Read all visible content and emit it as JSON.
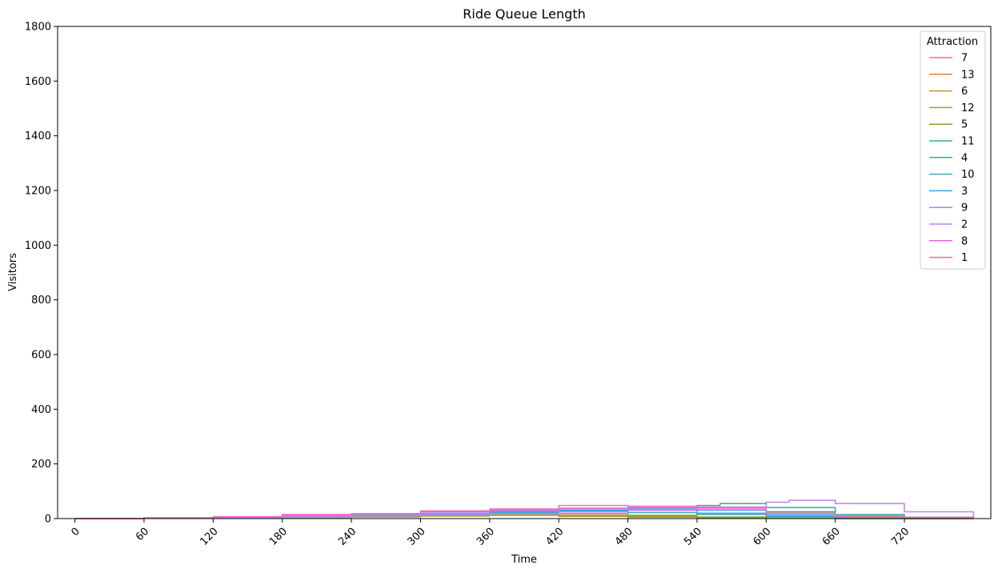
{
  "chart_data": {
    "type": "line",
    "title": "Ride Queue Length",
    "xlabel": "Time",
    "ylabel": "Visitors",
    "xlim": [
      -15,
      795
    ],
    "ylim": [
      0,
      1800
    ],
    "xticks": [
      0,
      60,
      120,
      180,
      240,
      300,
      360,
      420,
      480,
      540,
      600,
      660,
      720
    ],
    "yticks": [
      0,
      200,
      400,
      600,
      800,
      1000,
      1200,
      1400,
      1600,
      1800
    ],
    "grid": false,
    "legend": {
      "title": "Attraction",
      "placement": "top-right"
    },
    "series": [
      {
        "name": "7",
        "color": "#f77189",
        "x": [
          0,
          60,
          120,
          180,
          240,
          300,
          360,
          420,
          480,
          540,
          600,
          660,
          720,
          780
        ],
        "y": [
          0,
          2,
          4,
          7,
          10,
          12,
          14,
          12,
          8,
          5,
          3,
          1,
          0,
          0
        ]
      },
      {
        "name": "13",
        "color": "#e8822a",
        "x": [
          0,
          60,
          120,
          180,
          240,
          300,
          360,
          420,
          480,
          540,
          600,
          660,
          720,
          780
        ],
        "y": [
          0,
          1,
          3,
          5,
          8,
          10,
          12,
          10,
          7,
          4,
          2,
          1,
          0,
          0
        ]
      },
      {
        "name": "6",
        "color": "#c39532",
        "x": [
          0,
          60,
          120,
          180,
          240,
          300,
          360,
          420,
          480,
          540,
          600,
          660,
          720,
          780
        ],
        "y": [
          0,
          1,
          2,
          4,
          6,
          9,
          12,
          8,
          5,
          2,
          1,
          0,
          0,
          0
        ]
      },
      {
        "name": "12",
        "color": "#a5a032",
        "x": [
          0,
          60,
          120,
          180,
          240,
          300,
          360,
          420,
          480,
          540,
          600,
          660,
          720,
          780
        ],
        "y": [
          0,
          2,
          4,
          6,
          9,
          12,
          16,
          10,
          6,
          3,
          1,
          0,
          0,
          0
        ]
      },
      {
        "name": "5",
        "color": "#77ab31",
        "x": [
          0,
          60,
          120,
          180,
          240,
          300,
          360,
          420,
          480,
          540,
          600,
          660,
          720,
          780
        ],
        "y": [
          0,
          1,
          3,
          5,
          8,
          14,
          20,
          18,
          12,
          6,
          3,
          1,
          0,
          0
        ]
      },
      {
        "name": "11",
        "color": "#33b07a",
        "x": [
          0,
          60,
          120,
          180,
          240,
          300,
          360,
          420,
          480,
          540,
          600,
          660,
          720,
          780
        ],
        "y": [
          0,
          2,
          4,
          8,
          12,
          18,
          24,
          30,
          35,
          40,
          25,
          10,
          4,
          2
        ]
      },
      {
        "name": "4",
        "color": "#35ad9c",
        "x": [
          0,
          60,
          120,
          180,
          240,
          300,
          360,
          420,
          480,
          540,
          560,
          600,
          660,
          720,
          780
        ],
        "y": [
          0,
          2,
          4,
          8,
          12,
          18,
          24,
          30,
          40,
          48,
          55,
          40,
          15,
          5,
          2
        ]
      },
      {
        "name": "10",
        "color": "#38a9c5",
        "x": [
          0,
          60,
          120,
          180,
          240,
          300,
          360,
          420,
          480,
          540,
          600,
          660,
          720,
          780
        ],
        "y": [
          0,
          1,
          3,
          6,
          10,
          14,
          20,
          25,
          22,
          15,
          8,
          4,
          2,
          1
        ]
      },
      {
        "name": "3",
        "color": "#3ba3ec",
        "x": [
          0,
          60,
          120,
          180,
          240,
          300,
          360,
          420,
          480,
          540,
          600,
          660,
          720,
          780
        ],
        "y": [
          0,
          1,
          3,
          6,
          10,
          16,
          22,
          28,
          30,
          20,
          10,
          5,
          2,
          1
        ]
      },
      {
        "name": "9",
        "color": "#8197f4",
        "x": [
          0,
          60,
          120,
          180,
          240,
          300,
          360,
          420,
          480,
          540,
          600,
          660,
          720,
          780
        ],
        "y": [
          0,
          2,
          4,
          8,
          14,
          20,
          28,
          35,
          38,
          30,
          15,
          6,
          3,
          1
        ]
      },
      {
        "name": "2",
        "color": "#bb83f4",
        "x": [
          0,
          60,
          120,
          180,
          240,
          300,
          360,
          420,
          480,
          540,
          600,
          620,
          660,
          720,
          780
        ],
        "y": [
          0,
          1,
          3,
          6,
          10,
          14,
          18,
          24,
          30,
          42,
          60,
          67,
          55,
          25,
          5
        ]
      },
      {
        "name": "8",
        "color": "#f45fe5",
        "x": [
          0,
          60,
          120,
          180,
          240,
          300,
          360,
          420,
          480,
          540,
          600,
          660,
          720,
          780
        ],
        "y": [
          0,
          3,
          6,
          15,
          18,
          25,
          32,
          38,
          40,
          35,
          20,
          8,
          3,
          1
        ]
      },
      {
        "name": "1",
        "color": "#f66bad",
        "x": [
          0,
          60,
          120,
          180,
          240,
          300,
          360,
          420,
          480,
          540,
          600,
          660,
          720,
          780
        ],
        "y": [
          0,
          3,
          7,
          12,
          18,
          28,
          35,
          48,
          45,
          40,
          20,
          8,
          4,
          1
        ]
      }
    ]
  }
}
